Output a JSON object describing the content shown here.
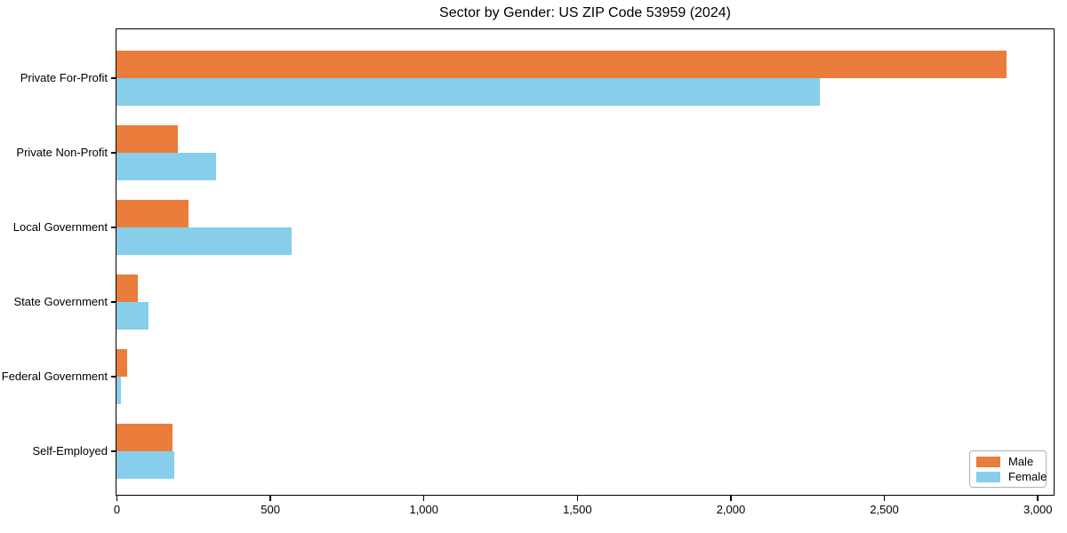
{
  "chart_data": {
    "type": "bar",
    "orientation": "horizontal",
    "title": "Sector by Gender: US ZIP Code 53959 (2024)",
    "categories": [
      "Private For-Profit",
      "Private Non-Profit",
      "Local Government",
      "State Government",
      "Federal Government",
      "Self-Employed"
    ],
    "series": [
      {
        "name": "Male",
        "color": "#ea7d3c",
        "values": [
          2900,
          200,
          235,
          70,
          35,
          182
        ]
      },
      {
        "name": "Female",
        "color": "#87ceeb",
        "values": [
          2290,
          325,
          570,
          105,
          15,
          188
        ]
      }
    ],
    "xlabel": "",
    "ylabel": "",
    "xlim": [
      0,
      3050
    ],
    "x_ticks": [
      0,
      500,
      1000,
      1500,
      2000,
      2500,
      3000
    ],
    "x_tick_labels": [
      "0",
      "500",
      "1,000",
      "1,500",
      "2,000",
      "2,500",
      "3,000"
    ],
    "grid": false,
    "legend": {
      "position": "lower right",
      "entries": [
        "Male",
        "Female"
      ]
    },
    "colors": {
      "axis": "#000000",
      "background": "#ffffff",
      "legend_border": "#b0b0b0"
    }
  }
}
